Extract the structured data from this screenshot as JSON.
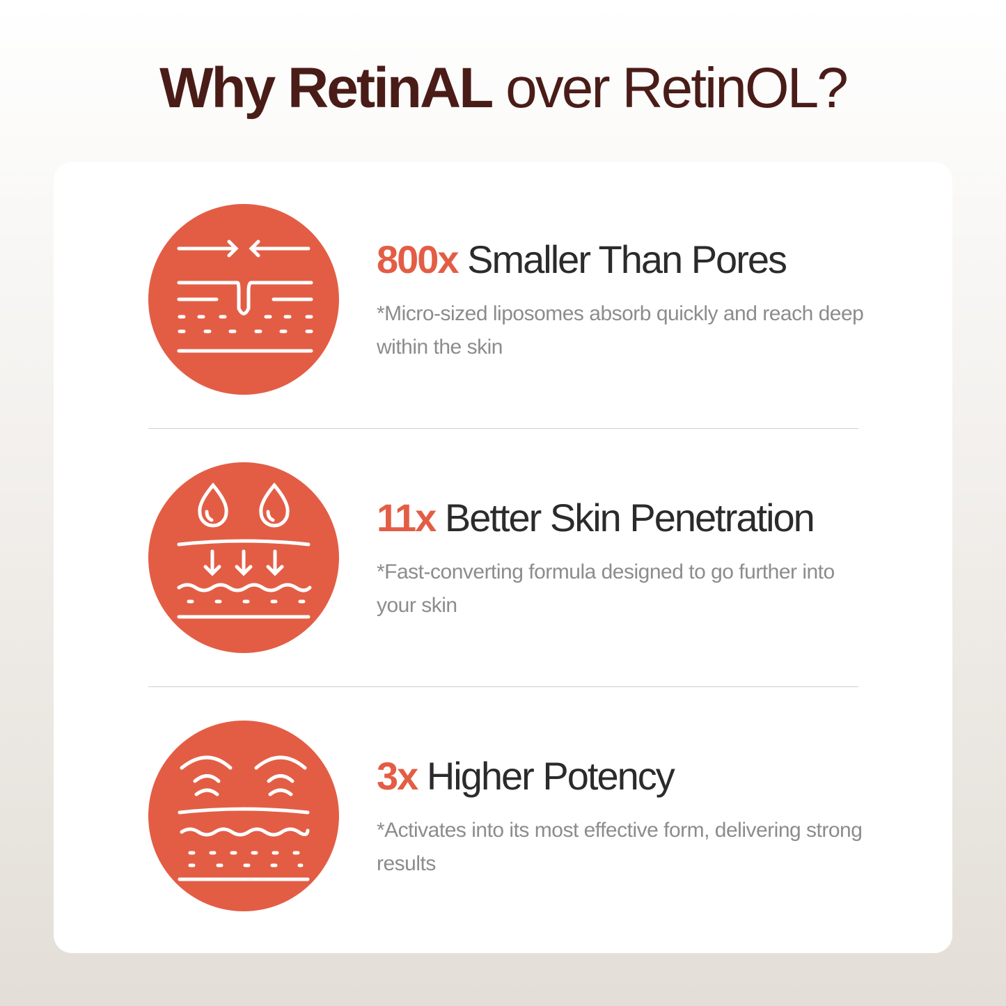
{
  "title": {
    "bold": "Why RetinAL",
    "rest": "over RetinOL?"
  },
  "accent_color": "#e35d45",
  "title_color": "#4a1c18",
  "features": [
    {
      "accent": "800x",
      "heading": "Smaller Than Pores",
      "description": "*Micro-sized liposomes absorb quickly and reach deep within the skin",
      "icon": "pore-skin-layers-icon"
    },
    {
      "accent": "11x",
      "heading": "Better Skin Penetration",
      "description": "*Fast-converting formula designed to go further into your skin",
      "icon": "droplets-penetration-icon"
    },
    {
      "accent": "3x",
      "heading": "Higher Potency",
      "description": "*Activates into its most effective form, delivering strong results",
      "icon": "radiating-skin-layers-icon"
    }
  ]
}
